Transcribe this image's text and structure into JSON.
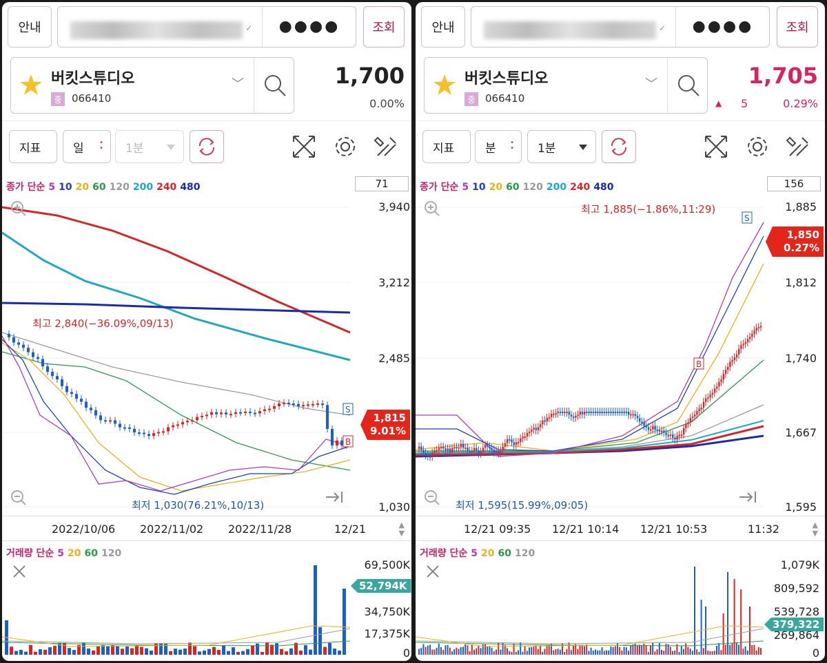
{
  "left": {
    "guide_label": "안내",
    "masked": "●●●●",
    "query_label": "조회",
    "stock_name": "버킷스튜디오",
    "market_badge": "중",
    "stock_code": "066410",
    "price": "1,700",
    "change_pct": "0.00%",
    "indicator_label": "지표",
    "period": "일",
    "interval": "1분",
    "ma_legend": {
      "prefix": "종가 단순",
      "ma5": "5",
      "ma10": "10",
      "ma20": "20",
      "ma60": "60",
      "ma120": "120",
      "ma200": "200",
      "ma240": "240",
      "ma480": "480"
    },
    "bar_count": "71",
    "y_axis": [
      "3,940",
      "3,212",
      "2,485",
      "1,030"
    ],
    "x_axis": [
      "2022/10/06",
      "2022/11/02",
      "2022/11/28",
      "12/21"
    ],
    "high_annotation": "최고 2,840(−36.09%,09/13)",
    "low_annotation": "최저 1,030(76.21%,10/13)",
    "current_price_tag": "1,815",
    "current_pct_tag": "9.01%",
    "vol_legend": {
      "prefix": "거래량 단순",
      "ma5": "5",
      "ma20": "20",
      "ma60": "60",
      "ma120": "120"
    },
    "vol_axis": [
      "69,500K",
      "34,750K",
      "17,375K",
      "0"
    ],
    "vol_tag": "52,794K",
    "signal_s": "S",
    "signal_b": "B"
  },
  "right": {
    "guide_label": "안내",
    "masked": "●●●●",
    "query_label": "조회",
    "stock_name": "버킷스튜디오",
    "market_badge": "중",
    "stock_code": "066410",
    "price": "1,705",
    "change": "5",
    "change_pct": "0.29%",
    "indicator_label": "지표",
    "period": "분",
    "interval": "1분",
    "ma_legend": {
      "prefix": "종가 단순",
      "ma5": "5",
      "ma10": "10",
      "ma20": "20",
      "ma60": "60",
      "ma120": "120",
      "ma200": "200",
      "ma240": "240",
      "ma480": "480"
    },
    "bar_count": "156",
    "y_axis": [
      "1,885",
      "1,812",
      "1,740",
      "1,667",
      "1,595"
    ],
    "x_axis": [
      "12/21 09:35",
      "12/21 10:14",
      "12/21 10:53",
      "11:32"
    ],
    "high_annotation": "최고 1,885(−1.86%,11:29)",
    "low_annotation": "최저 1,595(15.99%,09:05)",
    "current_price_tag": "1,850",
    "current_pct_tag": "0.27%",
    "vol_legend": {
      "prefix": "거래량 단순",
      "ma5": "5",
      "ma20": "20",
      "ma60": "60",
      "ma120": "120"
    },
    "vol_axis": [
      "1,079K",
      "809,592",
      "539,728",
      "269,864",
      "0"
    ],
    "vol_tag": "379,322",
    "signal_s": "S",
    "signal_b": "B"
  },
  "colors": {
    "ma5": "#b03ab8",
    "ma10": "#1f3fbf",
    "ma20": "#e8b21c",
    "ma60": "#2a9a48",
    "ma120": "#9a9a9a",
    "ma200": "#1fa8c6",
    "ma240": "#d42626",
    "ma480": "#1b2aa8",
    "up": "#d42626",
    "down": "#1e5fc4",
    "accent": "#d5245f"
  },
  "icons": [
    "star-icon",
    "search-icon",
    "refresh-icon",
    "expand-icon",
    "gear-icon",
    "tools-icon",
    "zoom-in-icon",
    "zoom-out-icon",
    "close-icon",
    "jump-end-icon"
  ]
}
